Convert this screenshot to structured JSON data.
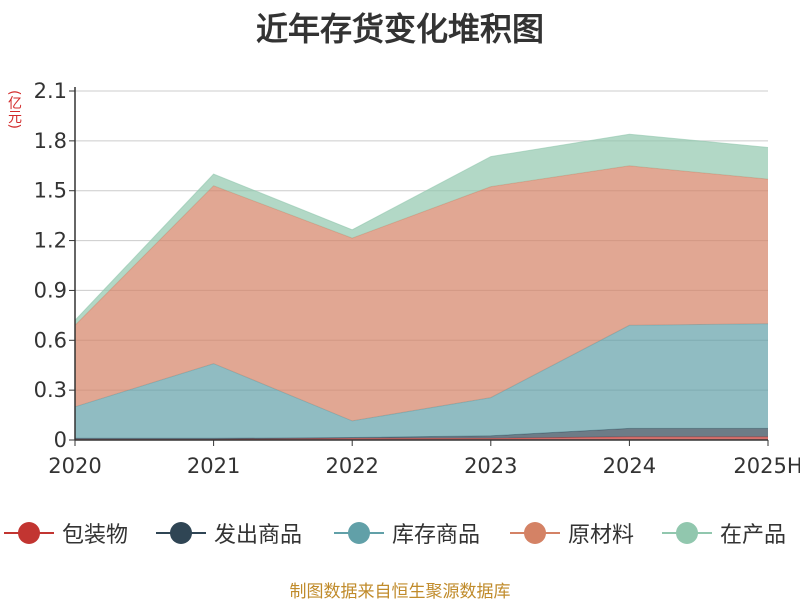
{
  "chart_data": {
    "type": "area",
    "stacked": true,
    "title": "近年存货变化堆积图",
    "ylabel": "(亿元)",
    "xlabel": "",
    "categories": [
      "2020",
      "2021",
      "2022",
      "2023",
      "2024",
      "2025H"
    ],
    "ylim": [
      0,
      2.1
    ],
    "yticks": [
      "0",
      "0.3",
      "0.6",
      "0.9",
      "1.2",
      "1.5",
      "1.8",
      "2.1"
    ],
    "grid": true,
    "legend_position": "bottom",
    "series": [
      {
        "name": "包装物",
        "color": "#c23531",
        "values": [
          0.005,
          0.005,
          0.01,
          0.01,
          0.02,
          0.02
        ]
      },
      {
        "name": "发出商品",
        "color": "#2f4554",
        "values": [
          0.005,
          0.005,
          0.005,
          0.015,
          0.05,
          0.05
        ]
      },
      {
        "name": "库存商品",
        "color": "#61a0a8",
        "values": [
          0.19,
          0.45,
          0.1,
          0.23,
          0.62,
          0.63
        ]
      },
      {
        "name": "原材料",
        "color": "#d48265",
        "values": [
          0.49,
          1.07,
          1.1,
          1.27,
          0.96,
          0.87
        ]
      },
      {
        "name": "在产品",
        "color": "#91c7ae",
        "values": [
          0.03,
          0.07,
          0.05,
          0.18,
          0.19,
          0.19
        ]
      }
    ]
  },
  "source": "制图数据来自恒生聚源数据库"
}
